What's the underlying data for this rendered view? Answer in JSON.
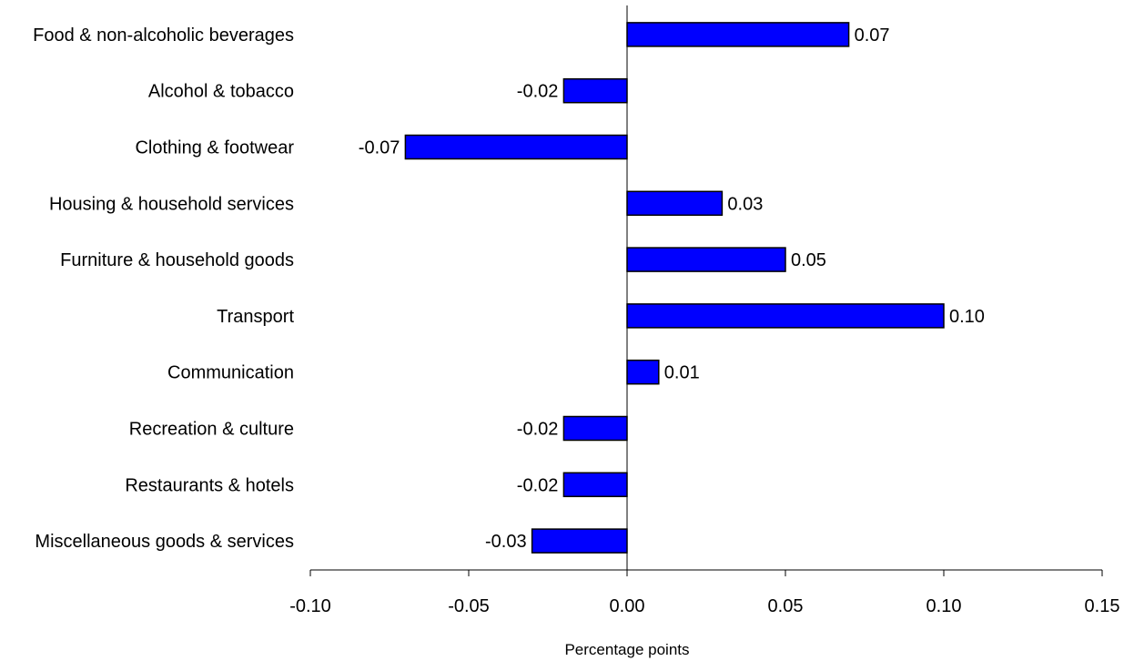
{
  "chart_data": {
    "type": "bar",
    "orientation": "horizontal",
    "categories": [
      "Food & non-alcoholic beverages",
      "Alcohol & tobacco",
      "Clothing & footwear",
      "Housing & household services",
      "Furniture & household goods",
      "Transport",
      "Communication",
      "Recreation & culture",
      "Restaurants & hotels",
      "Miscellaneous goods & services"
    ],
    "values": [
      0.07,
      -0.02,
      -0.07,
      0.03,
      0.05,
      0.1,
      0.01,
      -0.02,
      -0.02,
      -0.03
    ],
    "value_labels": [
      "0.07",
      "-0.02",
      "-0.07",
      "0.03",
      "0.05",
      "0.10",
      "0.01",
      "-0.02",
      "-0.02",
      "-0.03"
    ],
    "title": "",
    "xlabel": "Percentage points",
    "ylabel": "",
    "xlim": [
      -0.1,
      0.15
    ],
    "x_ticks": [
      -0.1,
      -0.05,
      0.0,
      0.05,
      0.1,
      0.15
    ],
    "x_tick_labels": [
      "-0.10",
      "-0.05",
      "0.00",
      "0.05",
      "0.10",
      "0.15"
    ],
    "grid": false,
    "legend": "none",
    "bar_color": "#0000FF",
    "bar_edge_color": "#000000"
  }
}
